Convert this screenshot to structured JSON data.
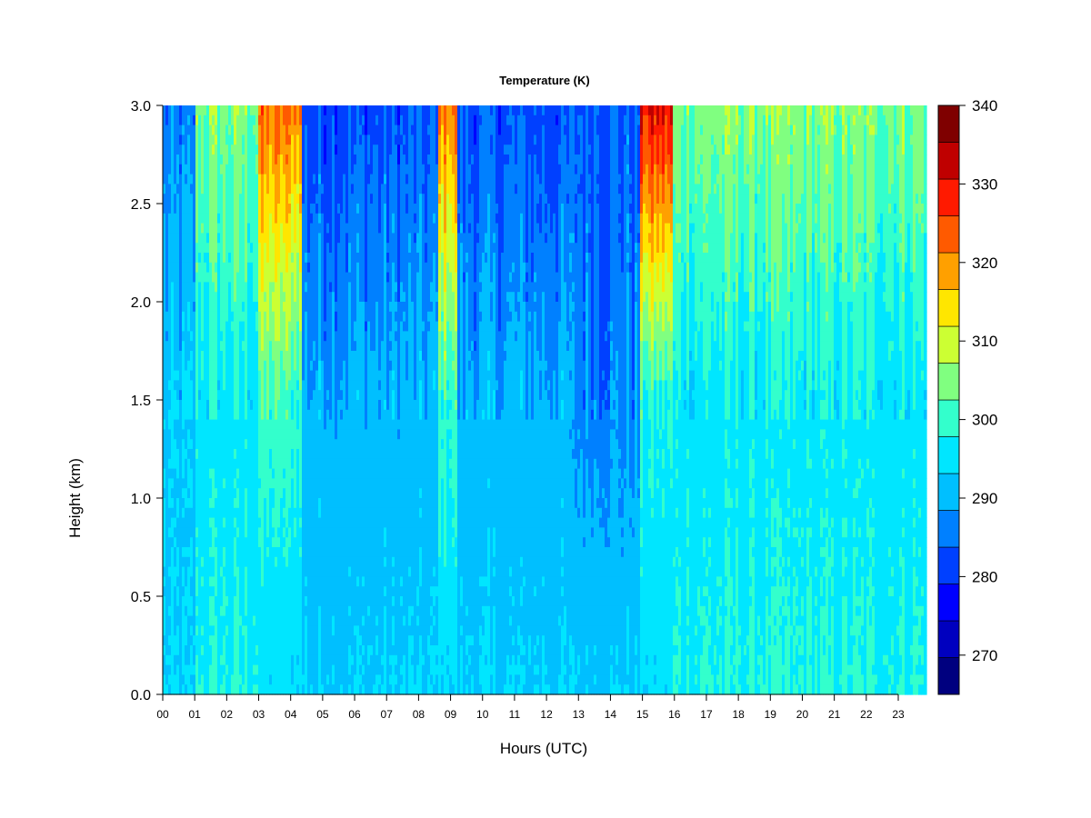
{
  "chart_data": {
    "type": "heatmap",
    "title": "Temperature (K)",
    "xlabel": "Hours (UTC)",
    "ylabel": "Height (km)",
    "xlim": [
      0,
      24
    ],
    "ylim": [
      0.0,
      3.0
    ],
    "x_ticks": [
      "00",
      "01",
      "02",
      "03",
      "04",
      "05",
      "06",
      "07",
      "08",
      "09",
      "10",
      "11",
      "12",
      "13",
      "14",
      "15",
      "16",
      "17",
      "18",
      "19",
      "20",
      "21",
      "22",
      "23"
    ],
    "y_ticks": [
      "0.0",
      "0.5",
      "1.0",
      "1.5",
      "2.0",
      "2.5",
      "3.0"
    ],
    "colorbar": {
      "label": "Temperature (K)",
      "min": 265,
      "max": 340,
      "step": 5,
      "tick_labels": [
        "270",
        "280",
        "290",
        "300",
        "310",
        "320",
        "330",
        "340"
      ],
      "tick_values": [
        270,
        280,
        290,
        300,
        310,
        320,
        330,
        340
      ],
      "colors": [
        "#00007f",
        "#0000bf",
        "#0000ff",
        "#0040ff",
        "#0080ff",
        "#00bfff",
        "#00e6ff",
        "#33ffcc",
        "#80ff80",
        "#ccff33",
        "#ffe600",
        "#ffa000",
        "#ff5a00",
        "#ff1a00",
        "#bf0000",
        "#7f0000"
      ]
    },
    "field_description_hours": [
      {
        "hours": [
          0.0,
          1.0
        ],
        "top_temp_k": 285,
        "mid_temp_k": 292,
        "low_temp_k": 293
      },
      {
        "hours": [
          3.0,
          4.4
        ],
        "top_temp_k": 322,
        "mid_temp_k": 300,
        "low_temp_k": 294
      },
      {
        "hours": [
          4.4,
          8.7
        ],
        "top_temp_k": 282,
        "mid_temp_k": 290,
        "low_temp_k": 293
      },
      {
        "hours": [
          8.7,
          9.3
        ],
        "top_temp_k": 322,
        "mid_temp_k": 300,
        "low_temp_k": 294
      },
      {
        "hours": [
          9.3,
          12.8
        ],
        "top_temp_k": 282,
        "mid_temp_k": 290,
        "low_temp_k": 293
      },
      {
        "hours": [
          12.8,
          15.0
        ],
        "top_temp_k": 284,
        "mid_temp_k": 287,
        "low_temp_k": 293
      },
      {
        "hours": [
          15.0,
          16.0
        ],
        "top_temp_k": 330,
        "mid_temp_k": 298,
        "low_temp_k": 294
      },
      {
        "hours": [
          16.0,
          24.0
        ],
        "top_temp_k": 305,
        "mid_temp_k": 296,
        "low_temp_k": 298
      }
    ]
  }
}
